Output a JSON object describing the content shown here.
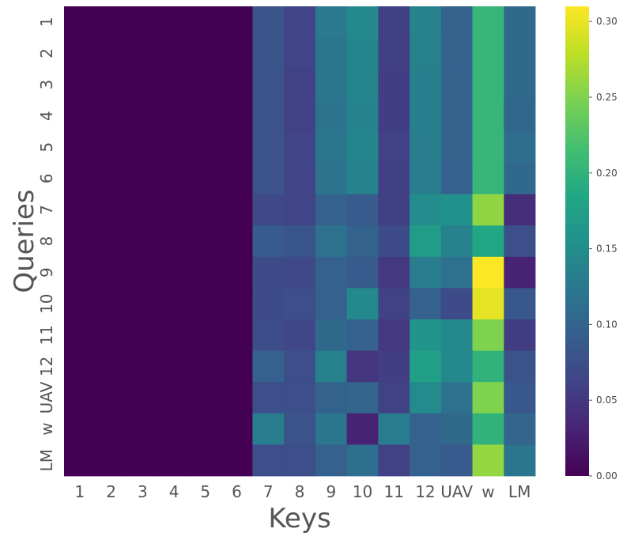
{
  "chart_data": {
    "type": "heatmap",
    "xlabel": "Keys",
    "ylabel": "Queries",
    "x_categories": [
      "1",
      "2",
      "3",
      "4",
      "5",
      "6",
      "7",
      "8",
      "9",
      "10",
      "11",
      "12",
      "UAV",
      "w",
      "LM"
    ],
    "y_categories": [
      "1",
      "2",
      "3",
      "4",
      "5",
      "6",
      "7",
      "8",
      "9",
      "10",
      "11",
      "12",
      "UAV",
      "w",
      "LM"
    ],
    "colormap": "viridis",
    "vmin": 0.0,
    "vmax": 0.31,
    "colorbar_ticks": [
      "0.00",
      "0.05",
      "0.10",
      "0.15",
      "0.20",
      "0.25",
      "0.30"
    ],
    "colorbar_tick_values": [
      0.0,
      0.05,
      0.1,
      0.15,
      0.2,
      0.25,
      0.3
    ],
    "values": [
      [
        0,
        0,
        0,
        0,
        0,
        0,
        0.08,
        0.062,
        0.125,
        0.145,
        0.058,
        0.138,
        0.098,
        0.205,
        0.105
      ],
      [
        0,
        0,
        0,
        0,
        0,
        0,
        0.08,
        0.062,
        0.12,
        0.14,
        0.058,
        0.135,
        0.098,
        0.205,
        0.105
      ],
      [
        0,
        0,
        0,
        0,
        0,
        0,
        0.078,
        0.06,
        0.12,
        0.14,
        0.056,
        0.133,
        0.098,
        0.205,
        0.105
      ],
      [
        0,
        0,
        0,
        0,
        0,
        0,
        0.078,
        0.06,
        0.118,
        0.138,
        0.056,
        0.133,
        0.098,
        0.205,
        0.103
      ],
      [
        0,
        0,
        0,
        0,
        0,
        0,
        0.078,
        0.062,
        0.122,
        0.14,
        0.06,
        0.132,
        0.098,
        0.205,
        0.11
      ],
      [
        0,
        0,
        0,
        0,
        0,
        0,
        0.078,
        0.062,
        0.118,
        0.138,
        0.058,
        0.13,
        0.096,
        0.205,
        0.106
      ],
      [
        0,
        0,
        0,
        0,
        0,
        0,
        0.068,
        0.062,
        0.095,
        0.088,
        0.058,
        0.15,
        0.155,
        0.258,
        0.04
      ],
      [
        0,
        0,
        0,
        0,
        0,
        0,
        0.088,
        0.082,
        0.115,
        0.098,
        0.07,
        0.17,
        0.135,
        0.185,
        0.075
      ],
      [
        0,
        0,
        0,
        0,
        0,
        0,
        0.07,
        0.068,
        0.095,
        0.088,
        0.05,
        0.13,
        0.115,
        0.31,
        0.03
      ],
      [
        0,
        0,
        0,
        0,
        0,
        0,
        0.07,
        0.075,
        0.095,
        0.145,
        0.06,
        0.095,
        0.07,
        0.298,
        0.085
      ],
      [
        0,
        0,
        0,
        0,
        0,
        0,
        0.072,
        0.065,
        0.105,
        0.095,
        0.05,
        0.16,
        0.145,
        0.25,
        0.055
      ],
      [
        0,
        0,
        0,
        0,
        0,
        0,
        0.095,
        0.075,
        0.135,
        0.048,
        0.055,
        0.175,
        0.145,
        0.2,
        0.08
      ],
      [
        0,
        0,
        0,
        0,
        0,
        0,
        0.075,
        0.075,
        0.098,
        0.1,
        0.06,
        0.148,
        0.115,
        0.25,
        0.085
      ],
      [
        0,
        0,
        0,
        0,
        0,
        0,
        0.13,
        0.078,
        0.12,
        0.03,
        0.13,
        0.095,
        0.105,
        0.2,
        0.1
      ],
      [
        0,
        0,
        0,
        0,
        0,
        0,
        0.075,
        0.075,
        0.095,
        0.112,
        0.06,
        0.095,
        0.088,
        0.26,
        0.12
      ]
    ]
  }
}
